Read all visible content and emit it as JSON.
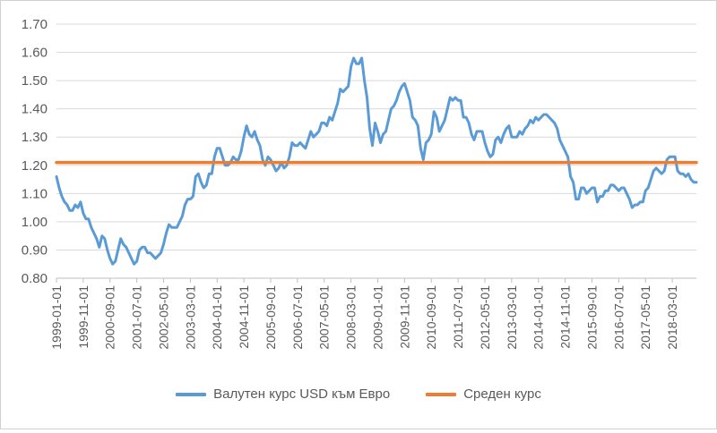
{
  "chart_data": {
    "type": "line",
    "title": "",
    "xlabel": "",
    "ylabel": "",
    "ylim": [
      0.8,
      1.7
    ],
    "yticks": [
      "0.80",
      "0.90",
      "1.00",
      "1.10",
      "1.20",
      "1.30",
      "1.40",
      "1.50",
      "1.60",
      "1.70"
    ],
    "xticks": [
      "1999-01-01",
      "1999-11-01",
      "2000-09-01",
      "2001-07-01",
      "2002-05-01",
      "2003-03-01",
      "2004-01-01",
      "2004-11-01",
      "2005-09-01",
      "2006-07-01",
      "2007-05-01",
      "2008-03-01",
      "2009-01-01",
      "2009-11-01",
      "2010-09-01",
      "2011-07-01",
      "2012-05-01",
      "2013-03-01",
      "2014-01-01",
      "2014-11-01",
      "2015-09-01",
      "2016-07-01",
      "2017-05-01",
      "2018-03-01"
    ],
    "grid": true,
    "legend_position": "bottom",
    "series": [
      {
        "name": "Валутен курс USD към Евро",
        "color": "#5b9bd5",
        "points": [
          [
            "1999-01-01",
            1.16
          ],
          [
            "1999-02-01",
            1.12
          ],
          [
            "1999-03-01",
            1.09
          ],
          [
            "1999-04-01",
            1.07
          ],
          [
            "1999-05-01",
            1.06
          ],
          [
            "1999-06-01",
            1.04
          ],
          [
            "1999-07-01",
            1.04
          ],
          [
            "1999-08-01",
            1.06
          ],
          [
            "1999-09-01",
            1.05
          ],
          [
            "1999-10-01",
            1.07
          ],
          [
            "1999-11-01",
            1.03
          ],
          [
            "1999-12-01",
            1.01
          ],
          [
            "2000-01-01",
            1.01
          ],
          [
            "2000-02-01",
            0.98
          ],
          [
            "2000-03-01",
            0.96
          ],
          [
            "2000-04-01",
            0.94
          ],
          [
            "2000-05-01",
            0.91
          ],
          [
            "2000-06-01",
            0.95
          ],
          [
            "2000-07-01",
            0.94
          ],
          [
            "2000-08-01",
            0.9
          ],
          [
            "2000-09-01",
            0.87
          ],
          [
            "2000-10-01",
            0.85
          ],
          [
            "2000-11-01",
            0.86
          ],
          [
            "2000-12-01",
            0.9
          ],
          [
            "2001-01-01",
            0.94
          ],
          [
            "2001-02-01",
            0.92
          ],
          [
            "2001-03-01",
            0.91
          ],
          [
            "2001-04-01",
            0.89
          ],
          [
            "2001-05-01",
            0.87
          ],
          [
            "2001-06-01",
            0.85
          ],
          [
            "2001-07-01",
            0.86
          ],
          [
            "2001-08-01",
            0.9
          ],
          [
            "2001-09-01",
            0.91
          ],
          [
            "2001-10-01",
            0.91
          ],
          [
            "2001-11-01",
            0.89
          ],
          [
            "2001-12-01",
            0.89
          ],
          [
            "2002-01-01",
            0.88
          ],
          [
            "2002-02-01",
            0.87
          ],
          [
            "2002-03-01",
            0.88
          ],
          [
            "2002-04-01",
            0.89
          ],
          [
            "2002-05-01",
            0.92
          ],
          [
            "2002-06-01",
            0.96
          ],
          [
            "2002-07-01",
            0.99
          ],
          [
            "2002-08-01",
            0.98
          ],
          [
            "2002-09-01",
            0.98
          ],
          [
            "2002-10-01",
            0.98
          ],
          [
            "2002-11-01",
            1.0
          ],
          [
            "2002-12-01",
            1.02
          ],
          [
            "2003-01-01",
            1.06
          ],
          [
            "2003-02-01",
            1.08
          ],
          [
            "2003-03-01",
            1.08
          ],
          [
            "2003-04-01",
            1.09
          ],
          [
            "2003-05-01",
            1.16
          ],
          [
            "2003-06-01",
            1.17
          ],
          [
            "2003-07-01",
            1.14
          ],
          [
            "2003-08-01",
            1.12
          ],
          [
            "2003-09-01",
            1.13
          ],
          [
            "2003-10-01",
            1.17
          ],
          [
            "2003-11-01",
            1.17
          ],
          [
            "2003-12-01",
            1.23
          ],
          [
            "2004-01-01",
            1.26
          ],
          [
            "2004-02-01",
            1.26
          ],
          [
            "2004-03-01",
            1.23
          ],
          [
            "2004-04-01",
            1.2
          ],
          [
            "2004-05-01",
            1.2
          ],
          [
            "2004-06-01",
            1.21
          ],
          [
            "2004-07-01",
            1.23
          ],
          [
            "2004-08-01",
            1.22
          ],
          [
            "2004-09-01",
            1.22
          ],
          [
            "2004-10-01",
            1.25
          ],
          [
            "2004-11-01",
            1.3
          ],
          [
            "2004-12-01",
            1.34
          ],
          [
            "2005-01-01",
            1.31
          ],
          [
            "2005-02-01",
            1.3
          ],
          [
            "2005-03-01",
            1.32
          ],
          [
            "2005-04-01",
            1.29
          ],
          [
            "2005-05-01",
            1.27
          ],
          [
            "2005-06-01",
            1.22
          ],
          [
            "2005-07-01",
            1.2
          ],
          [
            "2005-08-01",
            1.23
          ],
          [
            "2005-09-01",
            1.22
          ],
          [
            "2005-10-01",
            1.2
          ],
          [
            "2005-11-01",
            1.18
          ],
          [
            "2005-12-01",
            1.19
          ],
          [
            "2006-01-01",
            1.21
          ],
          [
            "2006-02-01",
            1.19
          ],
          [
            "2006-03-01",
            1.2
          ],
          [
            "2006-04-01",
            1.23
          ],
          [
            "2006-05-01",
            1.28
          ],
          [
            "2006-06-01",
            1.27
          ],
          [
            "2006-07-01",
            1.27
          ],
          [
            "2006-08-01",
            1.28
          ],
          [
            "2006-09-01",
            1.27
          ],
          [
            "2006-10-01",
            1.26
          ],
          [
            "2006-11-01",
            1.29
          ],
          [
            "2006-12-01",
            1.32
          ],
          [
            "2007-01-01",
            1.3
          ],
          [
            "2007-02-01",
            1.31
          ],
          [
            "2007-03-01",
            1.32
          ],
          [
            "2007-04-01",
            1.35
          ],
          [
            "2007-05-01",
            1.35
          ],
          [
            "2007-06-01",
            1.34
          ],
          [
            "2007-07-01",
            1.37
          ],
          [
            "2007-08-01",
            1.36
          ],
          [
            "2007-09-01",
            1.39
          ],
          [
            "2007-10-01",
            1.42
          ],
          [
            "2007-11-01",
            1.47
          ],
          [
            "2007-12-01",
            1.46
          ],
          [
            "2008-01-01",
            1.47
          ],
          [
            "2008-02-01",
            1.48
          ],
          [
            "2008-03-01",
            1.55
          ],
          [
            "2008-04-01",
            1.58
          ],
          [
            "2008-05-01",
            1.56
          ],
          [
            "2008-06-01",
            1.56
          ],
          [
            "2008-07-01",
            1.58
          ],
          [
            "2008-08-01",
            1.5
          ],
          [
            "2008-09-01",
            1.44
          ],
          [
            "2008-10-01",
            1.33
          ],
          [
            "2008-11-01",
            1.27
          ],
          [
            "2008-12-01",
            1.35
          ],
          [
            "2009-01-01",
            1.32
          ],
          [
            "2009-02-01",
            1.28
          ],
          [
            "2009-03-01",
            1.31
          ],
          [
            "2009-04-01",
            1.32
          ],
          [
            "2009-05-01",
            1.36
          ],
          [
            "2009-06-01",
            1.4
          ],
          [
            "2009-07-01",
            1.41
          ],
          [
            "2009-08-01",
            1.43
          ],
          [
            "2009-09-01",
            1.46
          ],
          [
            "2009-10-01",
            1.48
          ],
          [
            "2009-11-01",
            1.49
          ],
          [
            "2009-12-01",
            1.46
          ],
          [
            "2010-01-01",
            1.43
          ],
          [
            "2010-02-01",
            1.37
          ],
          [
            "2010-03-01",
            1.36
          ],
          [
            "2010-04-01",
            1.34
          ],
          [
            "2010-05-01",
            1.26
          ],
          [
            "2010-06-01",
            1.22
          ],
          [
            "2010-07-01",
            1.28
          ],
          [
            "2010-08-01",
            1.29
          ],
          [
            "2010-09-01",
            1.31
          ],
          [
            "2010-10-01",
            1.39
          ],
          [
            "2010-11-01",
            1.37
          ],
          [
            "2010-12-01",
            1.32
          ],
          [
            "2011-01-01",
            1.34
          ],
          [
            "2011-02-01",
            1.36
          ],
          [
            "2011-03-01",
            1.4
          ],
          [
            "2011-04-01",
            1.44
          ],
          [
            "2011-05-01",
            1.43
          ],
          [
            "2011-06-01",
            1.44
          ],
          [
            "2011-07-01",
            1.43
          ],
          [
            "2011-08-01",
            1.43
          ],
          [
            "2011-09-01",
            1.37
          ],
          [
            "2011-10-01",
            1.37
          ],
          [
            "2011-11-01",
            1.35
          ],
          [
            "2011-12-01",
            1.31
          ],
          [
            "2012-01-01",
            1.29
          ],
          [
            "2012-02-01",
            1.32
          ],
          [
            "2012-03-01",
            1.32
          ],
          [
            "2012-04-01",
            1.32
          ],
          [
            "2012-05-01",
            1.28
          ],
          [
            "2012-06-01",
            1.25
          ],
          [
            "2012-07-01",
            1.23
          ],
          [
            "2012-08-01",
            1.24
          ],
          [
            "2012-09-01",
            1.29
          ],
          [
            "2012-10-01",
            1.3
          ],
          [
            "2012-11-01",
            1.28
          ],
          [
            "2012-12-01",
            1.31
          ],
          [
            "2013-01-01",
            1.33
          ],
          [
            "2013-02-01",
            1.34
          ],
          [
            "2013-03-01",
            1.3
          ],
          [
            "2013-04-01",
            1.3
          ],
          [
            "2013-05-01",
            1.3
          ],
          [
            "2013-06-01",
            1.32
          ],
          [
            "2013-07-01",
            1.31
          ],
          [
            "2013-08-01",
            1.33
          ],
          [
            "2013-09-01",
            1.34
          ],
          [
            "2013-10-01",
            1.36
          ],
          [
            "2013-11-01",
            1.35
          ],
          [
            "2013-12-01",
            1.37
          ],
          [
            "2014-01-01",
            1.36
          ],
          [
            "2014-02-01",
            1.37
          ],
          [
            "2014-03-01",
            1.38
          ],
          [
            "2014-04-01",
            1.38
          ],
          [
            "2014-05-01",
            1.37
          ],
          [
            "2014-06-01",
            1.36
          ],
          [
            "2014-07-01",
            1.35
          ],
          [
            "2014-08-01",
            1.33
          ],
          [
            "2014-09-01",
            1.29
          ],
          [
            "2014-10-01",
            1.27
          ],
          [
            "2014-11-01",
            1.25
          ],
          [
            "2014-12-01",
            1.23
          ],
          [
            "2015-01-01",
            1.16
          ],
          [
            "2015-02-01",
            1.14
          ],
          [
            "2015-03-01",
            1.08
          ],
          [
            "2015-04-01",
            1.08
          ],
          [
            "2015-05-01",
            1.12
          ],
          [
            "2015-06-01",
            1.12
          ],
          [
            "2015-07-01",
            1.1
          ],
          [
            "2015-08-01",
            1.11
          ],
          [
            "2015-09-01",
            1.12
          ],
          [
            "2015-10-01",
            1.12
          ],
          [
            "2015-11-01",
            1.07
          ],
          [
            "2015-12-01",
            1.09
          ],
          [
            "2016-01-01",
            1.09
          ],
          [
            "2016-02-01",
            1.11
          ],
          [
            "2016-03-01",
            1.11
          ],
          [
            "2016-04-01",
            1.13
          ],
          [
            "2016-05-01",
            1.13
          ],
          [
            "2016-06-01",
            1.12
          ],
          [
            "2016-07-01",
            1.11
          ],
          [
            "2016-08-01",
            1.12
          ],
          [
            "2016-09-01",
            1.12
          ],
          [
            "2016-10-01",
            1.1
          ],
          [
            "2016-11-01",
            1.08
          ],
          [
            "2016-12-01",
            1.05
          ],
          [
            "2017-01-01",
            1.06
          ],
          [
            "2017-02-01",
            1.06
          ],
          [
            "2017-03-01",
            1.07
          ],
          [
            "2017-04-01",
            1.07
          ],
          [
            "2017-05-01",
            1.11
          ],
          [
            "2017-06-01",
            1.12
          ],
          [
            "2017-07-01",
            1.15
          ],
          [
            "2017-08-01",
            1.18
          ],
          [
            "2017-09-01",
            1.19
          ],
          [
            "2017-10-01",
            1.18
          ],
          [
            "2017-11-01",
            1.17
          ],
          [
            "2017-12-01",
            1.18
          ],
          [
            "2018-01-01",
            1.22
          ],
          [
            "2018-02-01",
            1.23
          ],
          [
            "2018-03-01",
            1.23
          ],
          [
            "2018-04-01",
            1.23
          ],
          [
            "2018-05-01",
            1.18
          ],
          [
            "2018-06-01",
            1.17
          ],
          [
            "2018-07-01",
            1.17
          ],
          [
            "2018-08-01",
            1.16
          ],
          [
            "2018-09-01",
            1.17
          ],
          [
            "2018-10-01",
            1.15
          ],
          [
            "2018-11-01",
            1.14
          ],
          [
            "2018-12-01",
            1.14
          ]
        ]
      },
      {
        "name": "Среден курс",
        "color": "#ed7d31",
        "points": [
          [
            "1999-01-01",
            1.21
          ],
          [
            "2018-12-01",
            1.21
          ]
        ]
      }
    ]
  }
}
